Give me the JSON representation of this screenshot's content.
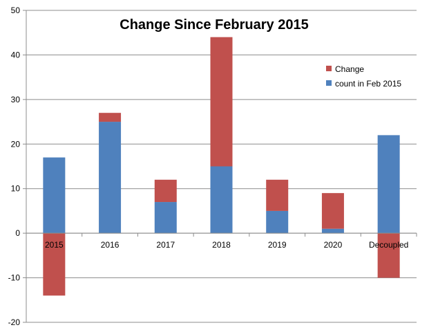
{
  "chart_data": {
    "type": "bar",
    "stacked": true,
    "title": "Change Since February 2015",
    "xlabel": "",
    "ylabel": "",
    "categories": [
      "2015",
      "2016",
      "2017",
      "2018",
      "2019",
      "2020",
      "Decoupled"
    ],
    "series": [
      {
        "name": "count in Feb 2015",
        "color": "#4f81bd",
        "values": [
          17,
          25,
          7,
          15,
          5,
          1,
          22
        ]
      },
      {
        "name": "Change",
        "color": "#c0504d",
        "values": [
          -14,
          2,
          5,
          29,
          7,
          8,
          -10
        ]
      }
    ],
    "ylim": [
      -20,
      50
    ],
    "yticks": [
      -20,
      -10,
      0,
      10,
      20,
      30,
      40,
      50
    ],
    "grid": true,
    "legend_position": "top-right"
  }
}
